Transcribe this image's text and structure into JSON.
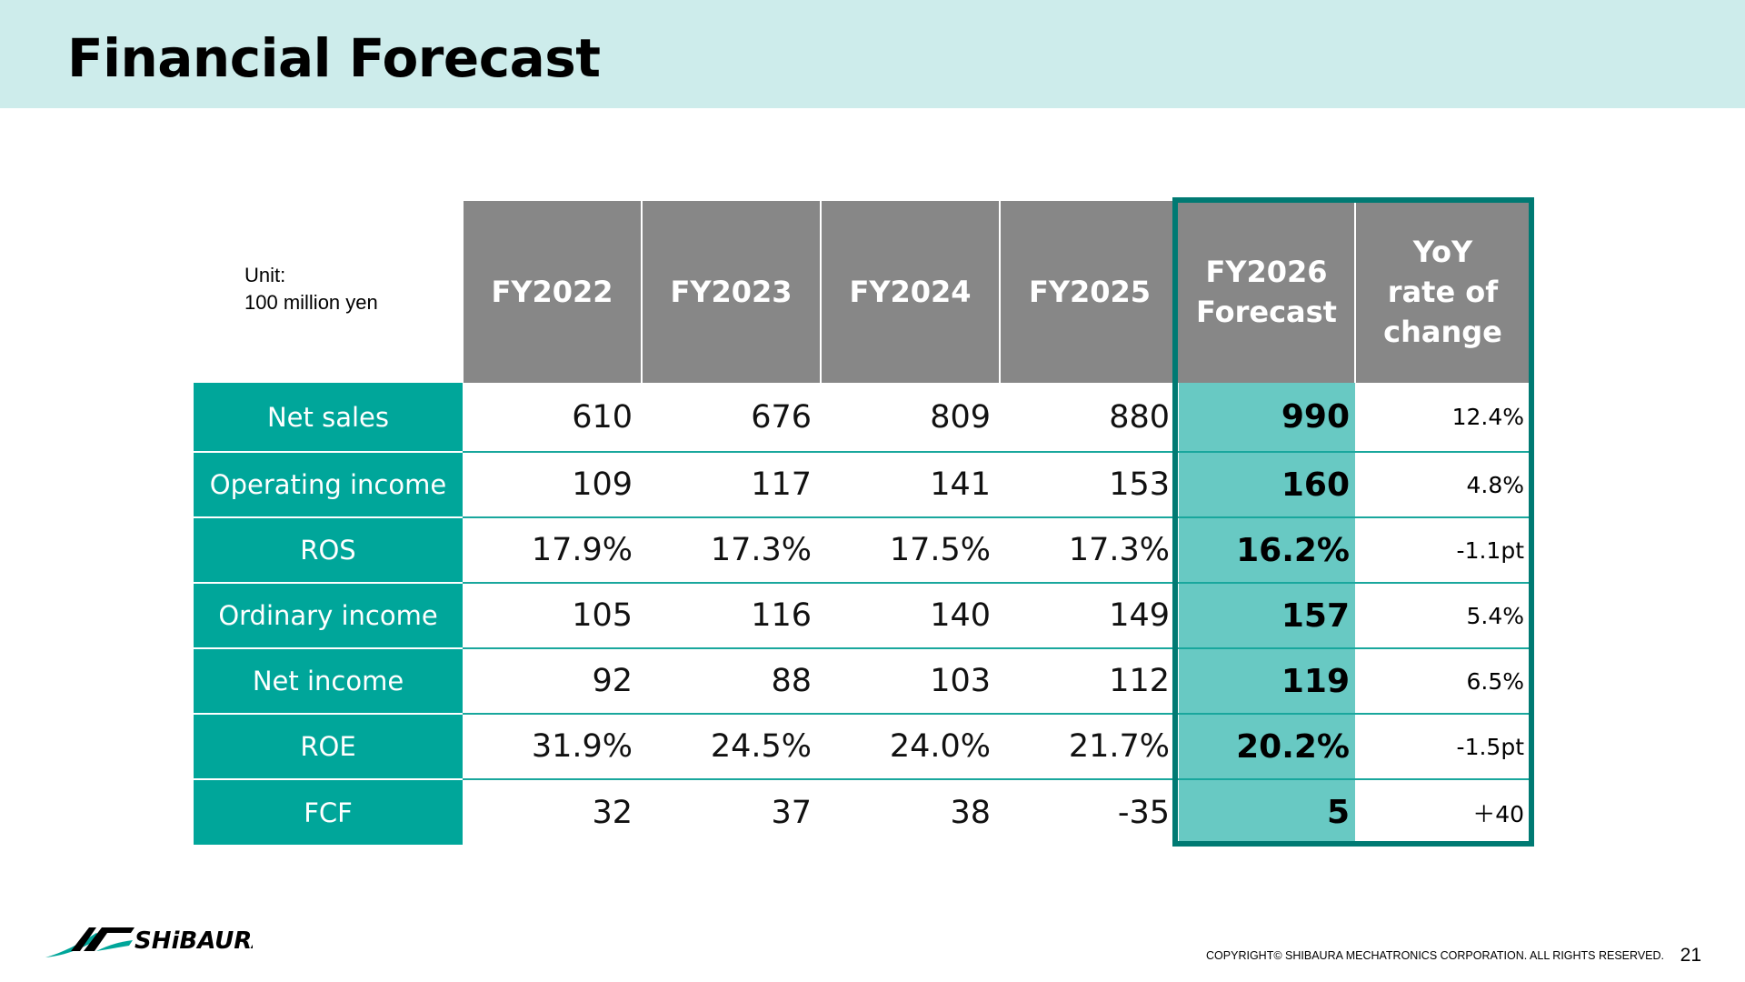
{
  "slide": {
    "title": "Financial Forecast",
    "unit_line1": "Unit:",
    "unit_line2": "100 million yen",
    "page_number": "21",
    "copyright": "COPYRIGHT© SHIBAURA MECHATRONICS CORPORATION. ALL RIGHTS RESERVED.",
    "logo_text": "SHiBAURA",
    "logo_icon": "shibaura-logo-icon"
  },
  "colors": {
    "header_band": "#cdeceb",
    "column_header": "#878787",
    "row_label": "#00a69a",
    "forecast_fill": "#68c9c3",
    "forecast_border": "#007a73"
  },
  "table": {
    "headers": [
      "FY2022",
      "FY2023",
      "FY2024",
      "FY2025"
    ],
    "forecast_header": [
      "FY2026",
      "Forecast"
    ],
    "yoy_header": [
      "YoY",
      "rate of",
      "change"
    ],
    "rows": [
      {
        "label": "Net sales",
        "values": [
          "610",
          "676",
          "809",
          "880"
        ],
        "forecast": "990",
        "yoy": "12.4%"
      },
      {
        "label": "Operating income",
        "values": [
          "109",
          "117",
          "141",
          "153"
        ],
        "forecast": "160",
        "yoy": "4.8%"
      },
      {
        "label": "ROS",
        "values": [
          "17.9%",
          "17.3%",
          "17.5%",
          "17.3%"
        ],
        "forecast": "16.2%",
        "yoy": "-1.1pt"
      },
      {
        "label": "Ordinary income",
        "values": [
          "105",
          "116",
          "140",
          "149"
        ],
        "forecast": "157",
        "yoy": "5.4%"
      },
      {
        "label": "Net income",
        "values": [
          "92",
          "88",
          "103",
          "112"
        ],
        "forecast": "119",
        "yoy": "6.5%"
      },
      {
        "label": "ROE",
        "values": [
          "31.9%",
          "24.5%",
          "24.0%",
          "21.7%"
        ],
        "forecast": "20.2%",
        "yoy": "-1.5pt"
      },
      {
        "label": "FCF",
        "values": [
          "32",
          "37",
          "38",
          "-35"
        ],
        "forecast": "5",
        "yoy": "＋40"
      }
    ]
  }
}
